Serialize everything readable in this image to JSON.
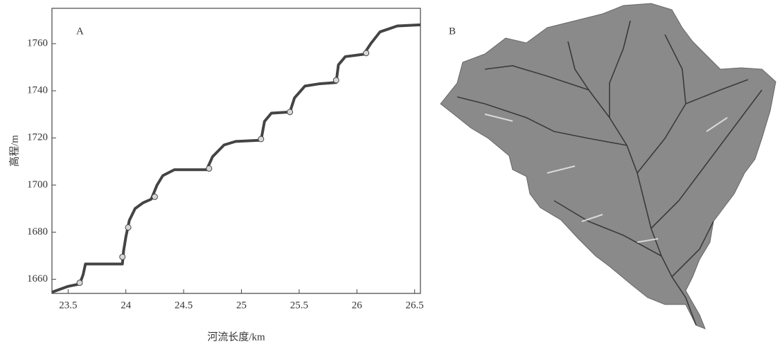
{
  "chart_data": {
    "type": "line",
    "panel_label": "A",
    "x_label": "河流长度/km",
    "y_label": "高程/m",
    "x": [
      23.36,
      23.5,
      23.6,
      23.63,
      23.65,
      23.97,
      23.98,
      24.0,
      24.03,
      24.08,
      24.15,
      24.22,
      24.27,
      24.32,
      24.42,
      24.7,
      24.75,
      24.85,
      24.95,
      25.17,
      25.2,
      25.26,
      25.42,
      25.46,
      25.55,
      25.68,
      25.82,
      25.84,
      25.9,
      26.06,
      26.12,
      26.2,
      26.35,
      26.55
    ],
    "values": [
      1654.5,
      1657,
      1658,
      1662,
      1666.5,
      1666.5,
      1672,
      1678,
      1685,
      1690,
      1692.5,
      1694,
      1700,
      1704,
      1706.5,
      1706.5,
      1712,
      1717,
      1718.5,
      1719,
      1727,
      1730.5,
      1731,
      1737,
      1742,
      1743,
      1743.5,
      1751,
      1754.5,
      1755.5,
      1760,
      1765,
      1767.5,
      1768
    ],
    "color": "#444444",
    "markers": {
      "x": [
        23.6,
        23.97,
        24.02,
        24.25,
        24.72,
        25.17,
        25.42,
        25.82,
        26.08
      ],
      "values": [
        1658.5,
        1669.5,
        1682,
        1695,
        1707,
        1719.5,
        1731,
        1744.5,
        1756
      ],
      "color": "#d8d8d8"
    },
    "xlim": [
      23.36,
      26.55
    ],
    "ylim": [
      1654,
      1775
    ],
    "xticks": [
      23.5,
      24,
      24.5,
      25,
      25.5,
      26,
      26.5
    ],
    "yticks": [
      1660,
      1680,
      1700,
      1720,
      1740,
      1760
    ]
  },
  "panel_b": {
    "label": "B"
  }
}
